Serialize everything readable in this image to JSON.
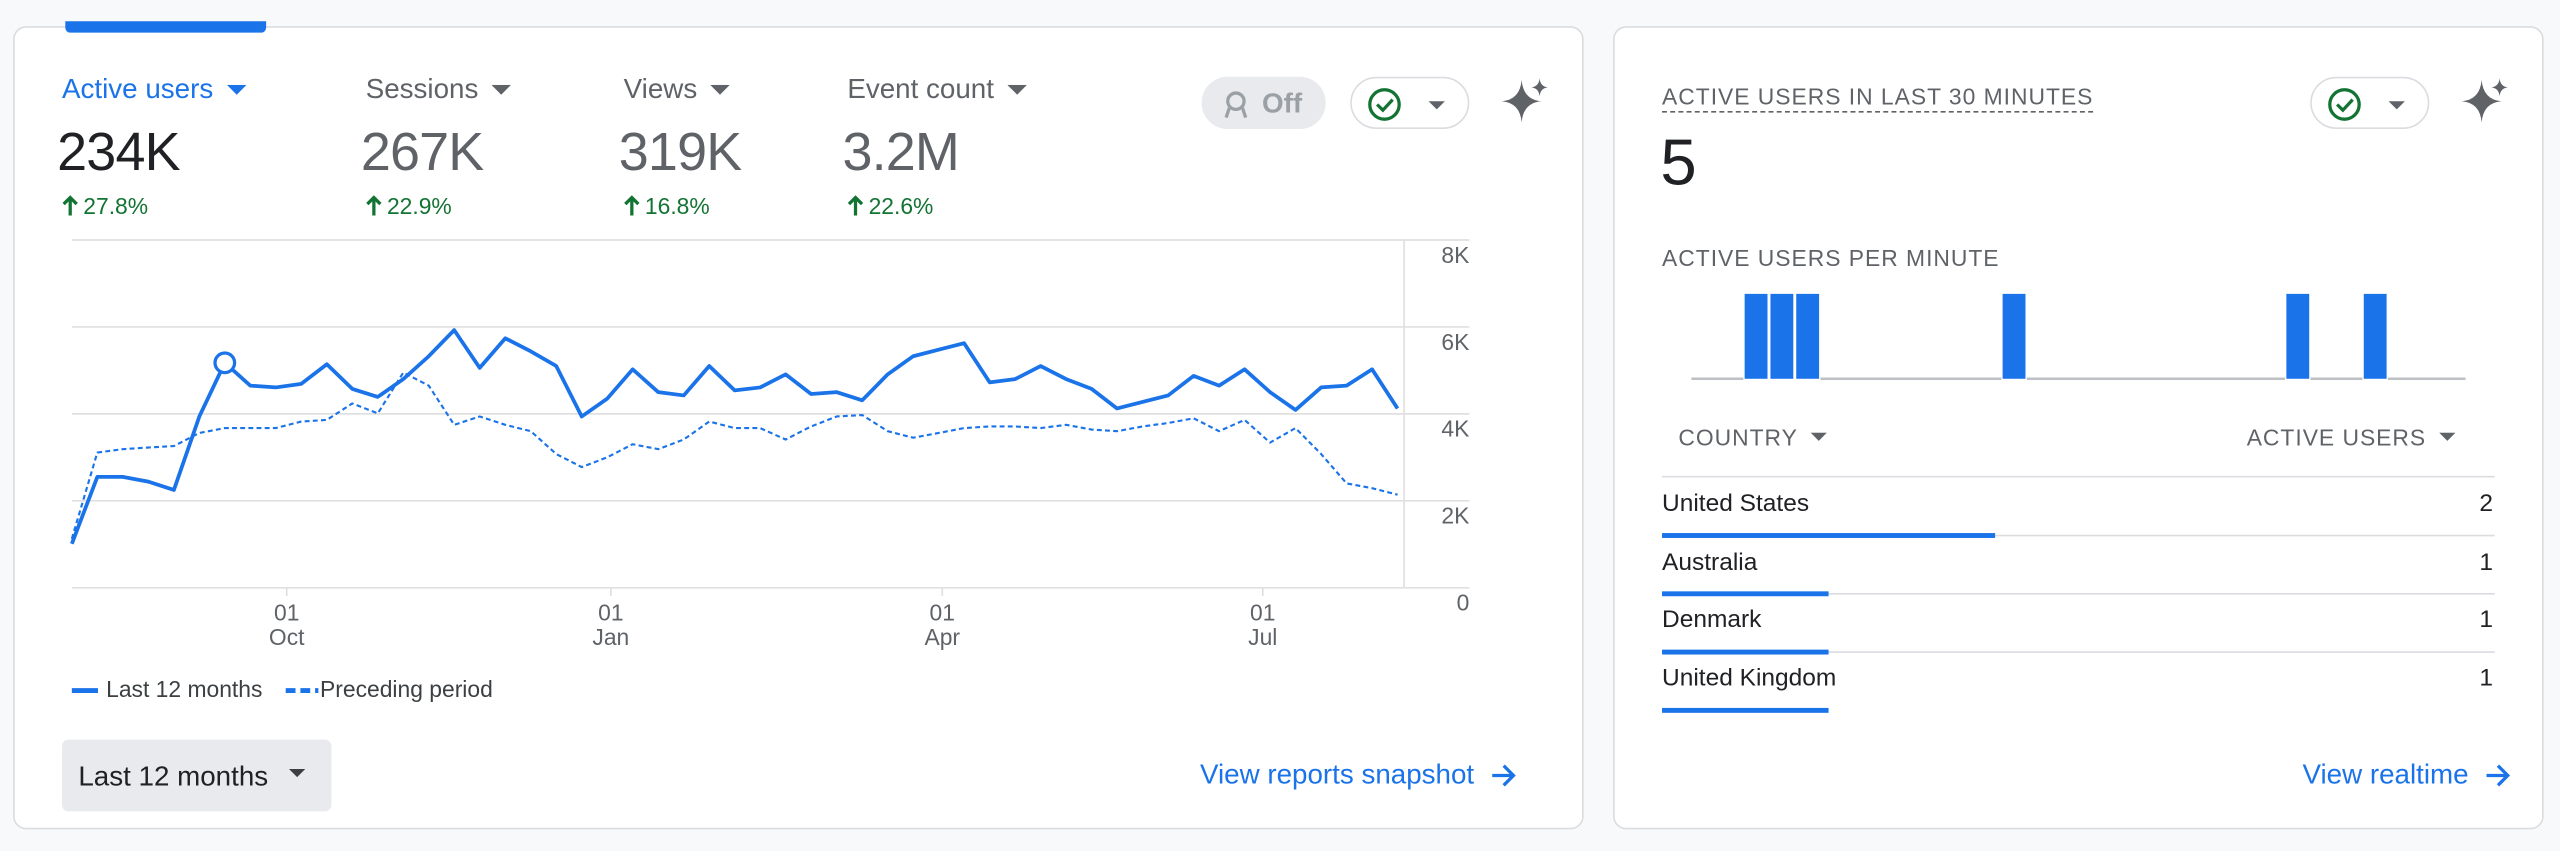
{
  "metrics": [
    {
      "label": "Active users",
      "value": "234K",
      "change": "27.8%"
    },
    {
      "label": "Sessions",
      "value": "267K",
      "change": "22.9%"
    },
    {
      "label": "Views",
      "value": "319K",
      "change": "16.8%"
    },
    {
      "label": "Event count",
      "value": "3.2M",
      "change": "22.6%"
    }
  ],
  "toggle": "Off",
  "chart_data": [
    {
      "type": "line",
      "x": [
        0,
        7,
        14,
        21,
        28,
        35,
        42,
        49,
        56,
        63,
        70,
        77,
        84,
        91,
        98,
        105,
        112,
        119,
        126,
        133,
        140,
        147,
        154,
        161,
        168,
        175,
        182,
        189,
        196,
        203,
        210,
        217,
        224,
        231,
        238,
        245,
        252,
        259,
        266,
        273,
        280,
        287,
        294,
        301,
        308,
        315,
        322,
        329,
        336,
        343,
        350,
        357,
        364
      ],
      "xlim": [
        0,
        364
      ],
      "xticks": [
        {
          "value": 59,
          "label": "01\nOct"
        },
        {
          "value": 148,
          "label": "01\nJan"
        },
        {
          "value": 239,
          "label": "01\nApr"
        },
        {
          "value": 327,
          "label": "01\nJul"
        }
      ],
      "ylim": [
        0,
        8000
      ],
      "yticks": [
        0,
        {
          "value": 2000,
          "label": "2K"
        },
        {
          "value": 4000,
          "label": "4K"
        },
        {
          "value": 6000,
          "label": "6K"
        },
        {
          "value": 8000,
          "label": "8K"
        }
      ],
      "grid": true,
      "legend": "bottom-left",
      "series": [
        {
          "name": "Last 12 months",
          "color": "#1a73e8",
          "linestyle": "solid",
          "values": [
            1010,
            2550,
            2550,
            2440,
            2250,
            3940,
            5175,
            4650,
            4610,
            4690,
            5140,
            4575,
            4390,
            4800,
            5325,
            5925,
            5060,
            5740,
            5440,
            5100,
            3940,
            4350,
            5025,
            4500,
            4425,
            5100,
            4540,
            4610,
            4910,
            4460,
            4500,
            4310,
            4910,
            5325,
            5475,
            5625,
            4725,
            4800,
            5100,
            4800,
            4575,
            4125,
            4275,
            4425,
            4875,
            4650,
            5025,
            4500,
            4090,
            4610,
            4650,
            5025,
            4125
          ]
        },
        {
          "name": "Preceding period",
          "color": "#1a73e8",
          "linestyle": "dashed",
          "values": [
            1125,
            3110,
            3190,
            3225,
            3260,
            3560,
            3675,
            3675,
            3675,
            3825,
            3860,
            4240,
            4010,
            4950,
            4650,
            3750,
            3940,
            3750,
            3600,
            3075,
            2775,
            3000,
            3300,
            3190,
            3410,
            3825,
            3675,
            3675,
            3410,
            3710,
            3940,
            3975,
            3600,
            3450,
            3560,
            3675,
            3710,
            3710,
            3675,
            3750,
            3640,
            3600,
            3710,
            3790,
            3900,
            3600,
            3860,
            3340,
            3675,
            3075,
            2400,
            2290,
            2140
          ]
        }
      ]
    },
    {
      "type": "bar",
      "title": "ACTIVE USERS PER MINUTE",
      "color": "#1a73e8",
      "values": [
        0,
        0,
        1,
        1,
        1,
        0,
        0,
        0,
        0,
        0,
        0,
        0,
        1,
        0,
        0,
        0,
        0,
        0,
        0,
        0,
        0,
        0,
        0,
        1,
        0,
        0,
        1,
        0,
        0,
        0
      ]
    }
  ],
  "date_range": "Last 12 months",
  "overview_link": "View reports snapshot",
  "realtime": {
    "title": "ACTIVE USERS IN LAST 30 MINUTES",
    "value": 5,
    "table": {
      "columns": [
        "COUNTRY",
        "ACTIVE USERS"
      ],
      "rows": [
        [
          "United States",
          2
        ],
        [
          "Australia",
          1
        ],
        [
          "Denmark",
          1
        ],
        [
          "United Kingdom",
          1
        ]
      ]
    },
    "link": "View realtime"
  }
}
